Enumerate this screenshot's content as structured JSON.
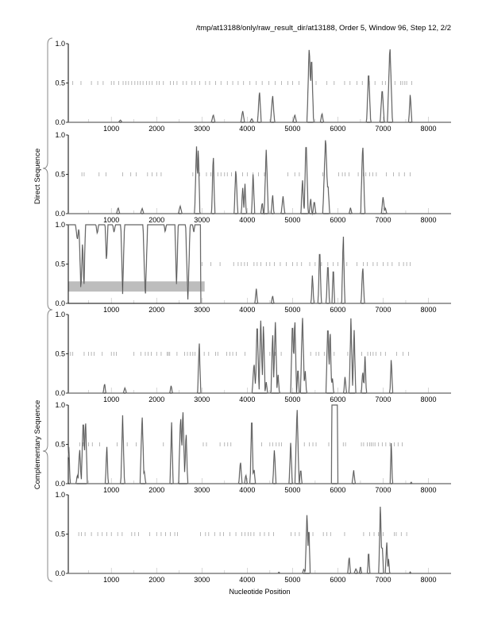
{
  "chart_data": {
    "type": "line",
    "title": "/tmp/at13188/only/raw_result_dir/at13188, Order 5, Window 96, Step 12, 2/2",
    "xlabel": "Nucleotide Position",
    "group_labels": [
      "Direct Sequence",
      "Complementary Sequence"
    ],
    "xlim": [
      50,
      8500
    ],
    "ylim": [
      0,
      1
    ],
    "xticks": [
      1000,
      2000,
      3000,
      4000,
      5000,
      6000,
      7000,
      8000
    ],
    "xtick_labels": [
      "1000",
      "2000",
      "3000",
      "4000",
      "5000",
      "6000",
      "7000",
      "8000"
    ],
    "yticks": [
      0,
      0.5,
      1
    ],
    "ytick_labels": [
      "0.0",
      "0.5",
      "1.0"
    ],
    "colors": {
      "line": "#4a4a4a",
      "line_light": "#9a9a9a",
      "band": "#bdbdbd",
      "axis": "#000000"
    },
    "panels": [
      {
        "group": "Direct Sequence",
        "peaks": [
          [
            1200,
            0.03,
            40
          ],
          [
            3250,
            0.1,
            40
          ],
          [
            3900,
            0.15,
            40
          ],
          [
            4100,
            0.05,
            40
          ],
          [
            4270,
            0.42,
            40
          ],
          [
            4560,
            0.35,
            45
          ],
          [
            5050,
            0.1,
            40
          ],
          [
            5370,
            1.0,
            50
          ],
          [
            5420,
            0.88,
            45
          ],
          [
            5650,
            0.12,
            35
          ],
          [
            6680,
            0.68,
            45
          ],
          [
            6980,
            0.45,
            45
          ],
          [
            7150,
            1.0,
            55
          ],
          [
            7600,
            0.37,
            35
          ]
        ],
        "marks": [
          150,
          330,
          560,
          700,
          820,
          1000,
          1060,
          1160,
          1260,
          1320,
          1380,
          1450,
          1520,
          1580,
          1640,
          1700,
          1780,
          1840,
          1900,
          2000,
          2060,
          2150,
          2300,
          2370,
          2450,
          2580,
          2660,
          2780,
          2850,
          2950,
          3080,
          3170,
          3300,
          3420,
          3560,
          3680,
          3800,
          3920,
          4060,
          4200,
          4330,
          4480,
          4620,
          4760,
          4900,
          5000,
          5140,
          5520,
          5760,
          5920,
          6150,
          6270,
          6420,
          6540,
          6700,
          6820,
          6980,
          7050,
          7260,
          7390,
          7430,
          7480,
          7520,
          7630
        ]
      },
      {
        "group": "Direct Sequence",
        "peaks": [
          [
            1150,
            0.08,
            35
          ],
          [
            1680,
            0.07,
            35
          ],
          [
            2520,
            0.1,
            40
          ],
          [
            2880,
            0.9,
            40
          ],
          [
            2920,
            0.85,
            35
          ],
          [
            3250,
            0.8,
            35
          ],
          [
            3750,
            0.6,
            40
          ],
          [
            3900,
            0.35,
            30
          ],
          [
            3950,
            0.38,
            30
          ],
          [
            4130,
            0.5,
            35
          ],
          [
            4330,
            0.15,
            30
          ],
          [
            4420,
            0.85,
            45
          ],
          [
            4560,
            0.25,
            30
          ],
          [
            4790,
            0.22,
            40
          ],
          [
            5220,
            0.45,
            35
          ],
          [
            5300,
            0.97,
            45
          ],
          [
            5400,
            0.2,
            30
          ],
          [
            5480,
            0.17,
            35
          ],
          [
            5730,
            1.0,
            60
          ],
          [
            5780,
            0.4,
            40
          ],
          [
            6280,
            0.08,
            30
          ],
          [
            6550,
            0.92,
            45
          ],
          [
            7000,
            0.22,
            40
          ],
          [
            7050,
            0.08,
            30
          ]
        ],
        "marks": [
          350,
          400,
          730,
          880,
          1250,
          1430,
          1550,
          1800,
          1900,
          2000,
          2100,
          2800,
          2950,
          3100,
          3200,
          3350,
          3420,
          3500,
          3560,
          3650,
          3900,
          4000,
          4130,
          4250,
          4380,
          4900,
          5050,
          5150,
          5670,
          6020,
          6100,
          6160,
          6250,
          6450,
          6560,
          6620,
          6700,
          6770,
          6850,
          7070,
          7230,
          7350,
          7470,
          7600
        ]
      },
      {
        "group": "Direct Sequence",
        "inverted_segment": [
          50,
          2970
        ],
        "dips": [
          [
            250,
            0.8,
            40
          ],
          [
            330,
            0.13,
            45
          ],
          [
            394,
            0.15,
            35
          ],
          [
            690,
            0.88,
            30
          ],
          [
            894,
            0.5,
            30
          ],
          [
            1060,
            0.9,
            30
          ],
          [
            1250,
            0.12,
            40
          ],
          [
            1750,
            0.05,
            50
          ],
          [
            2190,
            0.9,
            25
          ],
          [
            2440,
            0.2,
            35
          ],
          [
            2690,
            0.05,
            50
          ],
          [
            2820,
            0.9,
            25
          ]
        ],
        "peaks": [
          [
            4200,
            0.2,
            30
          ],
          [
            4560,
            0.1,
            30
          ],
          [
            5440,
            0.38,
            30
          ],
          [
            5600,
            0.75,
            35
          ],
          [
            5780,
            0.55,
            35
          ],
          [
            5900,
            0.5,
            30
          ],
          [
            6120,
            0.9,
            35
          ],
          [
            6550,
            0.5,
            35
          ]
        ],
        "band": [
          50,
          3060,
          0.15,
          0.28
        ],
        "marks": [
          3000,
          3200,
          3400,
          3700,
          3800,
          3870,
          3940,
          4000,
          4150,
          4220,
          4300,
          4420,
          4500,
          4600,
          4730,
          4860,
          5000,
          5100,
          5200,
          5380,
          5500,
          5640,
          5780,
          5900,
          6000,
          6200,
          6420,
          6560,
          6650,
          6780,
          6870,
          7000,
          7100,
          7200,
          7350,
          7450,
          7520,
          7600
        ]
      },
      {
        "group": "Complementary Sequence",
        "peaks": [
          [
            850,
            0.13,
            30
          ],
          [
            1300,
            0.07,
            35
          ],
          [
            2320,
            0.1,
            30
          ],
          [
            2940,
            0.67,
            35
          ],
          [
            4150,
            0.4,
            40
          ],
          [
            4220,
            0.96,
            40
          ],
          [
            4300,
            0.97,
            40
          ],
          [
            4360,
            0.9,
            35
          ],
          [
            4420,
            0.15,
            30
          ],
          [
            4560,
            0.78,
            35
          ],
          [
            4620,
            0.95,
            40
          ],
          [
            4680,
            0.25,
            30
          ],
          [
            5000,
            0.97,
            40
          ],
          [
            5050,
            1.0,
            40
          ],
          [
            5120,
            0.35,
            30
          ],
          [
            5220,
            1.0,
            45
          ],
          [
            5280,
            0.3,
            30
          ],
          [
            5780,
            0.93,
            40
          ],
          [
            5830,
            0.85,
            35
          ],
          [
            5880,
            0.2,
            30
          ],
          [
            6160,
            0.22,
            30
          ],
          [
            6290,
            0.95,
            40
          ],
          [
            6360,
            0.85,
            35
          ],
          [
            6550,
            0.3,
            30
          ],
          [
            6600,
            0.5,
            30
          ],
          [
            7180,
            0.45,
            30
          ]
        ],
        "marks": [
          100,
          150,
          400,
          500,
          560,
          620,
          800,
          1000,
          1060,
          1110,
          1500,
          1650,
          1750,
          1810,
          1880,
          2000,
          2100,
          2230,
          2260,
          2290,
          2450,
          2620,
          2680,
          2740,
          2800,
          2850,
          2950,
          3050,
          3150,
          3300,
          3350,
          3550,
          3620,
          3680,
          3760,
          3950,
          4500,
          4620,
          4750,
          5400,
          5520,
          5580,
          5700,
          5920,
          6220,
          6530,
          6660,
          6720,
          6780,
          6840,
          6950,
          7050,
          7300,
          7440,
          7560
        ]
      },
      {
        "group": "Complementary Sequence",
        "peaks": [
          [
            60,
            0.5,
            30
          ],
          [
            250,
            0.12,
            30
          ],
          [
            300,
            0.45,
            40
          ],
          [
            380,
            0.86,
            45
          ],
          [
            430,
            0.85,
            40
          ],
          [
            900,
            0.5,
            30
          ],
          [
            1250,
            0.87,
            40
          ],
          [
            1680,
            0.88,
            45
          ],
          [
            1730,
            0.15,
            30
          ],
          [
            2330,
            0.78,
            35
          ],
          [
            2530,
            0.9,
            45
          ],
          [
            2580,
            0.95,
            45
          ],
          [
            2650,
            0.7,
            35
          ],
          [
            3850,
            0.3,
            35
          ],
          [
            3970,
            0.12,
            30
          ],
          [
            4100,
            0.93,
            35
          ],
          [
            4150,
            0.2,
            30
          ],
          [
            4600,
            0.45,
            35
          ],
          [
            4960,
            0.55,
            35
          ],
          [
            5100,
            0.98,
            45
          ],
          [
            5180,
            0.2,
            30
          ],
          [
            6350,
            0.17,
            35
          ],
          [
            7180,
            0.56,
            25
          ],
          [
            7620,
            0.02,
            20
          ]
        ],
        "plateaus": [
          [
            5860,
            6000,
            1.0
          ]
        ],
        "marks": [
          300,
          380,
          500,
          580,
          740,
          1130,
          1350,
          1550,
          2150,
          3030,
          3100,
          3400,
          3500,
          3570,
          3640,
          4320,
          4500,
          4560,
          4640,
          4700,
          4760,
          5260,
          5370,
          5450,
          5520,
          5800,
          6120,
          6170,
          6520,
          6570,
          6650,
          6700,
          6740,
          6780,
          6820,
          6900,
          6980,
          7060,
          7150,
          7250,
          7330,
          7420
        ]
      },
      {
        "group": "Complementary Sequence",
        "peaks": [
          [
            4700,
            0.02,
            20
          ],
          [
            5250,
            0.06,
            30
          ],
          [
            5320,
            0.78,
            40
          ],
          [
            5360,
            0.65,
            30
          ],
          [
            6250,
            0.23,
            30
          ],
          [
            6400,
            0.06,
            40
          ],
          [
            6500,
            0.1,
            25
          ],
          [
            6680,
            0.32,
            25
          ],
          [
            6940,
            0.9,
            35
          ],
          [
            6980,
            0.4,
            30
          ],
          [
            7080,
            0.42,
            30
          ],
          [
            7120,
            0.2,
            25
          ],
          [
            7600,
            0.02,
            20
          ]
        ],
        "marks": [
          280,
          340,
          420,
          560,
          700,
          800,
          900,
          1000,
          1140,
          1240,
          1450,
          1520,
          1600,
          1850,
          2000,
          2100,
          2200,
          2300,
          2400,
          2460,
          2970,
          3080,
          3150,
          3280,
          3400,
          3480,
          3620,
          3750,
          3880,
          3950,
          4020,
          4080,
          4150,
          4280,
          4380,
          4480,
          4580,
          4970,
          5060,
          5150,
          5330,
          5450,
          5680,
          5760,
          5840,
          6150,
          6570,
          6700,
          6800,
          6900,
          7000,
          7250,
          7290,
          7400,
          7520
        ]
      }
    ]
  }
}
